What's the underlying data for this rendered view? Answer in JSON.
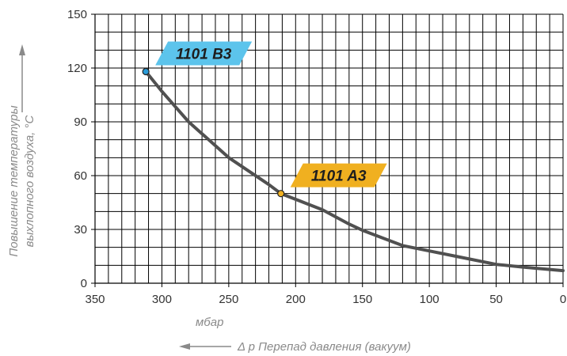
{
  "chart_data": {
    "type": "line",
    "xlabel_unit": "мбар",
    "xlabel": "Δ p Перепад давления (вакуум)",
    "ylabel_line1": "Повышение температуры",
    "ylabel_line2": "выхлопного воздуха, °C",
    "x_ticks": [
      "350",
      "300",
      "250",
      "200",
      "150",
      "100",
      "50",
      "0"
    ],
    "y_ticks": [
      "0",
      "30",
      "60",
      "90",
      "120",
      "150"
    ],
    "xlim": [
      350,
      0
    ],
    "ylim": [
      0,
      150
    ],
    "x_reversed": true,
    "grid": true,
    "x_minor_step": 10,
    "y_minor_step": 10,
    "series": [
      {
        "color": "#505050",
        "x": [
          312,
          300,
          280,
          250,
          220,
          211,
          180,
          160,
          150,
          120,
          100,
          80,
          50,
          30,
          0
        ],
        "y": [
          118,
          107,
          90,
          70,
          55,
          50,
          41,
          33,
          29.5,
          21,
          18,
          15,
          10.5,
          9,
          7
        ]
      }
    ],
    "annotations": [
      {
        "label": "1101 B3",
        "x": 312,
        "y": 118,
        "color": "#5cc4ec",
        "dot_color": "#2a9bd8"
      },
      {
        "label": "1101 A3",
        "x": 211,
        "y": 50,
        "color": "#f0b020",
        "dot_color": "#f0b020"
      }
    ]
  }
}
